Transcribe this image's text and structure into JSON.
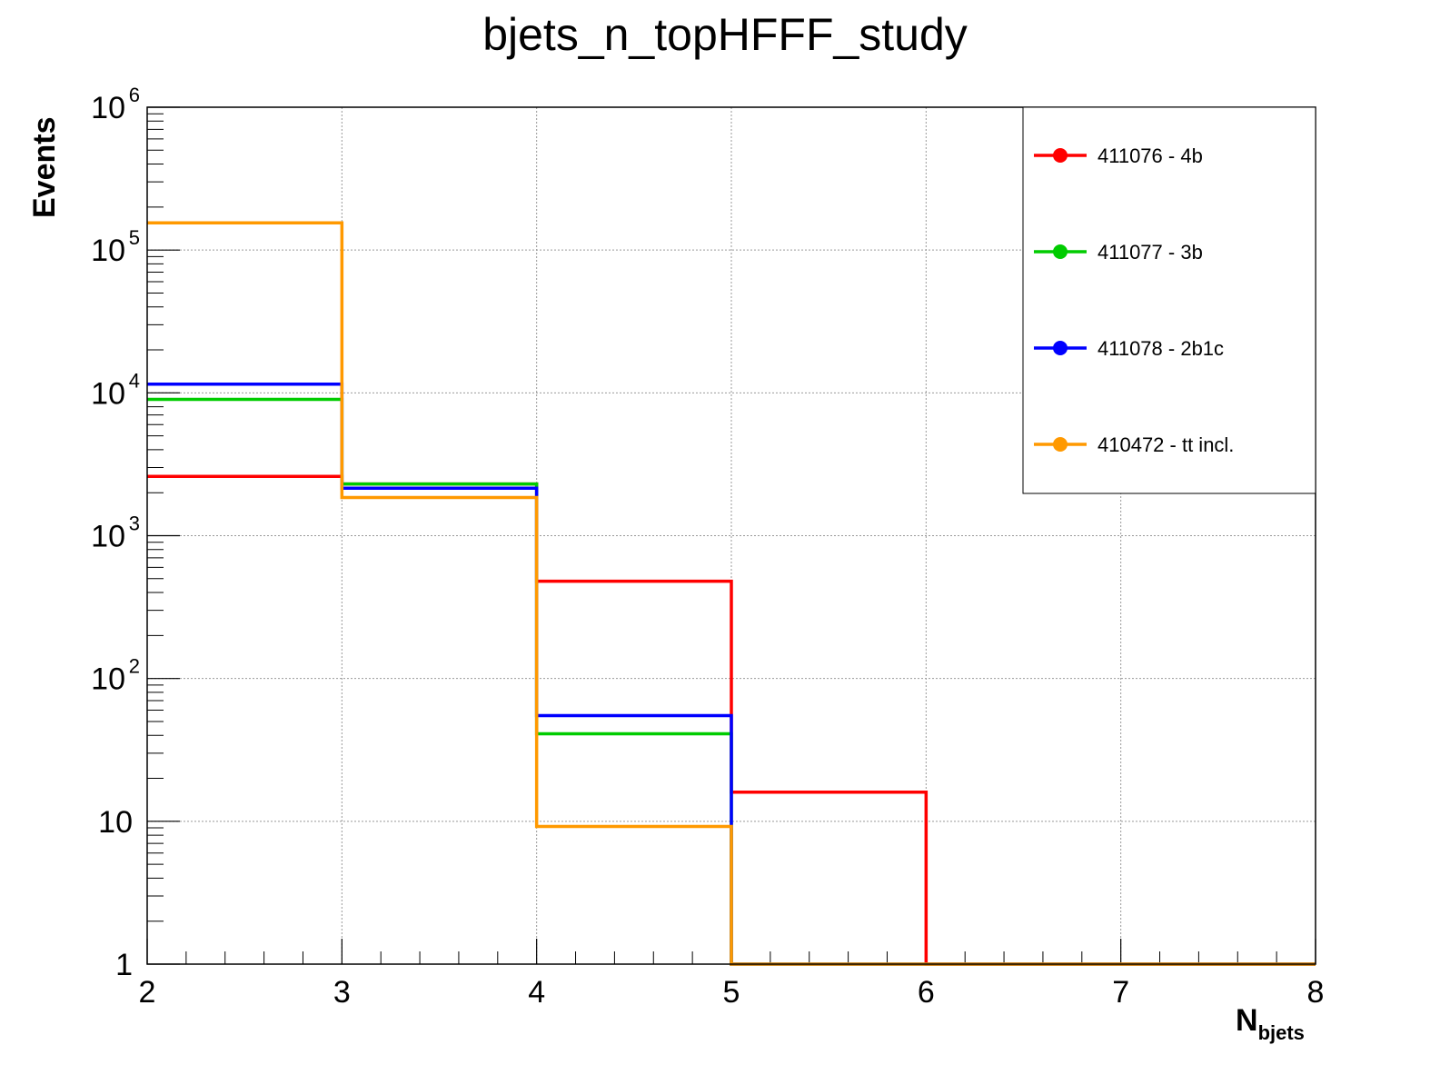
{
  "chart_data": {
    "type": "line",
    "style": "step-histogram",
    "title": "bjets_n_topHFFF_study",
    "xlabel": {
      "main": "N",
      "sub": "bjets"
    },
    "ylabel": "Events",
    "xlim": [
      2,
      8
    ],
    "ylim": [
      1,
      1000000
    ],
    "y_scale": "log",
    "grid": true,
    "legend_position": "top-right",
    "x_ticks": [
      "2",
      "3",
      "4",
      "5",
      "6",
      "7",
      "8"
    ],
    "y_ticks": [
      {
        "base": "10",
        "exp": "6"
      },
      {
        "base": "10",
        "exp": "5"
      },
      {
        "base": "10",
        "exp": "4"
      },
      {
        "base": "10",
        "exp": "3"
      },
      {
        "base": "10",
        "exp": "2"
      },
      {
        "base": "10",
        "exp": ""
      },
      {
        "base": "1",
        "exp": ""
      }
    ],
    "bin_edges": [
      2,
      3,
      4,
      5,
      6,
      7,
      8
    ],
    "series": [
      {
        "name": "411076 - 4b",
        "color": "#ff0000",
        "values": [
          2600,
          2300,
          480,
          16,
          0,
          0
        ]
      },
      {
        "name": "411077 - 3b",
        "color": "#00cc00",
        "values": [
          9000,
          2300,
          41,
          0,
          0,
          0
        ]
      },
      {
        "name": "411078 - 2b1c",
        "color": "#0000ff",
        "values": [
          11500,
          2150,
          55,
          0,
          0,
          0
        ]
      },
      {
        "name": "410472 - tt incl.",
        "color": "#ff9900",
        "values": [
          155000,
          1850,
          9.2,
          0,
          0,
          0
        ]
      }
    ]
  }
}
